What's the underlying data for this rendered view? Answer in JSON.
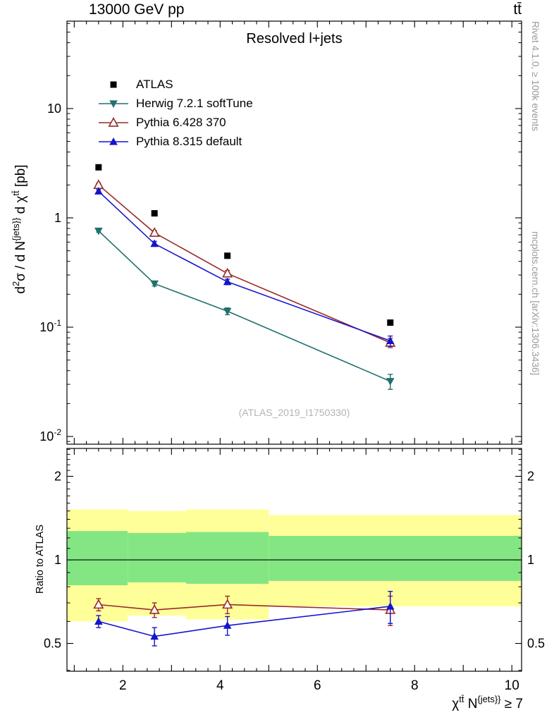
{
  "header": {
    "left": "13000 GeV pp",
    "right": "tt̄"
  },
  "side": {
    "top": "Rivet 4.1.0, ≥ 100k events",
    "bottom": "mcplots.cern.ch [arXiv:1306.3436]"
  },
  "plot": {
    "title": "Resolved l+jets",
    "watermark": "(ATLAS_2019_I1750330)"
  },
  "legend": {
    "items": [
      {
        "label": "ATLAS"
      },
      {
        "label": "Herwig 7.2.1 softTune"
      },
      {
        "label": "Pythia 6.428 370"
      },
      {
        "label": "Pythia 8.315 default"
      }
    ]
  },
  "labels": {
    "y_main_parts": [
      {
        "t": "d"
      },
      {
        "t": "2",
        "sup": true
      },
      {
        "t": "σ / d N"
      },
      {
        "t": "{jets}}",
        "sup": true
      },
      {
        "t": " d χ"
      },
      {
        "t": "tt̄",
        "sup": true
      },
      {
        "t": " [pb]"
      }
    ],
    "y_ratio": "Ratio to ATLAS",
    "x_title_parts": [
      {
        "t": "χ"
      },
      {
        "t": "tt̄",
        "sup": true
      },
      {
        "t": " N"
      },
      {
        "t": "{jets}}",
        "sup": true
      },
      {
        "t": " ≥ 7"
      }
    ]
  },
  "chart_data": {
    "type": "line",
    "title": "Resolved l+jets",
    "x": [
      1.5,
      2.65,
      4.15,
      7.5
    ],
    "xlim": [
      0.85,
      10.2
    ],
    "x_ticks_labeled": [
      2,
      4,
      6,
      8,
      10
    ],
    "main_panel": {
      "ylog": true,
      "ylim": [
        0.0085,
        63
      ],
      "ytick_decades": [
        1,
        0,
        -1,
        -2
      ],
      "series": [
        {
          "name": "ATLAS",
          "color": "#000000",
          "marker": "square",
          "line": false,
          "values": [
            2.9,
            1.1,
            0.45,
            0.11
          ]
        },
        {
          "name": "Herwig 7.2.1 softTune",
          "color": "#21706e",
          "marker": "triangle-down",
          "line": true,
          "values": [
            0.76,
            0.25,
            0.14,
            0.032
          ],
          "errors": [
            0.02,
            0.012,
            0.01,
            0.005
          ]
        },
        {
          "name": "Pythia 6.428 370",
          "color": "#9a2a2a",
          "marker": "triangle-open",
          "line": true,
          "values": [
            2.0,
            0.73,
            0.31,
            0.072
          ],
          "errors": [
            0.08,
            0.035,
            0.02,
            0.007
          ]
        },
        {
          "name": "Pythia 8.315 default",
          "color": "#1414cc",
          "marker": "triangle-up",
          "line": true,
          "values": [
            1.75,
            0.58,
            0.26,
            0.075
          ],
          "errors": [
            0.06,
            0.03,
            0.015,
            0.008
          ]
        }
      ]
    },
    "ratio_panel": {
      "ylog": true,
      "ylim": [
        0.397,
        2.52
      ],
      "yticks": [
        0.5,
        1,
        2
      ],
      "ylabel": "Ratio to ATLAS",
      "bands": {
        "edges": [
          0.85,
          2.1,
          3.3,
          5.0,
          10.2
        ],
        "yellow": [
          [
            0.6,
            1.52
          ],
          [
            0.63,
            1.5
          ],
          [
            0.61,
            1.52
          ],
          [
            0.68,
            1.45
          ]
        ],
        "green": [
          [
            0.81,
            1.27
          ],
          [
            0.83,
            1.25
          ],
          [
            0.82,
            1.26
          ],
          [
            0.84,
            1.22
          ]
        ],
        "yellow_color": "#ffff9a",
        "green_color": "#83e683"
      },
      "series": [
        {
          "name": "Pythia 6.428 370",
          "color": "#9a2a2a",
          "marker": "triangle-open",
          "line": true,
          "values": [
            0.69,
            0.66,
            0.69,
            0.66
          ],
          "errors": [
            0.035,
            0.04,
            0.05,
            0.08
          ]
        },
        {
          "name": "Pythia 8.315 default",
          "color": "#1414cc",
          "marker": "triangle-up",
          "line": true,
          "values": [
            0.6,
            0.53,
            0.58,
            0.68
          ],
          "errors": [
            0.03,
            0.04,
            0.045,
            0.09
          ]
        }
      ]
    }
  }
}
